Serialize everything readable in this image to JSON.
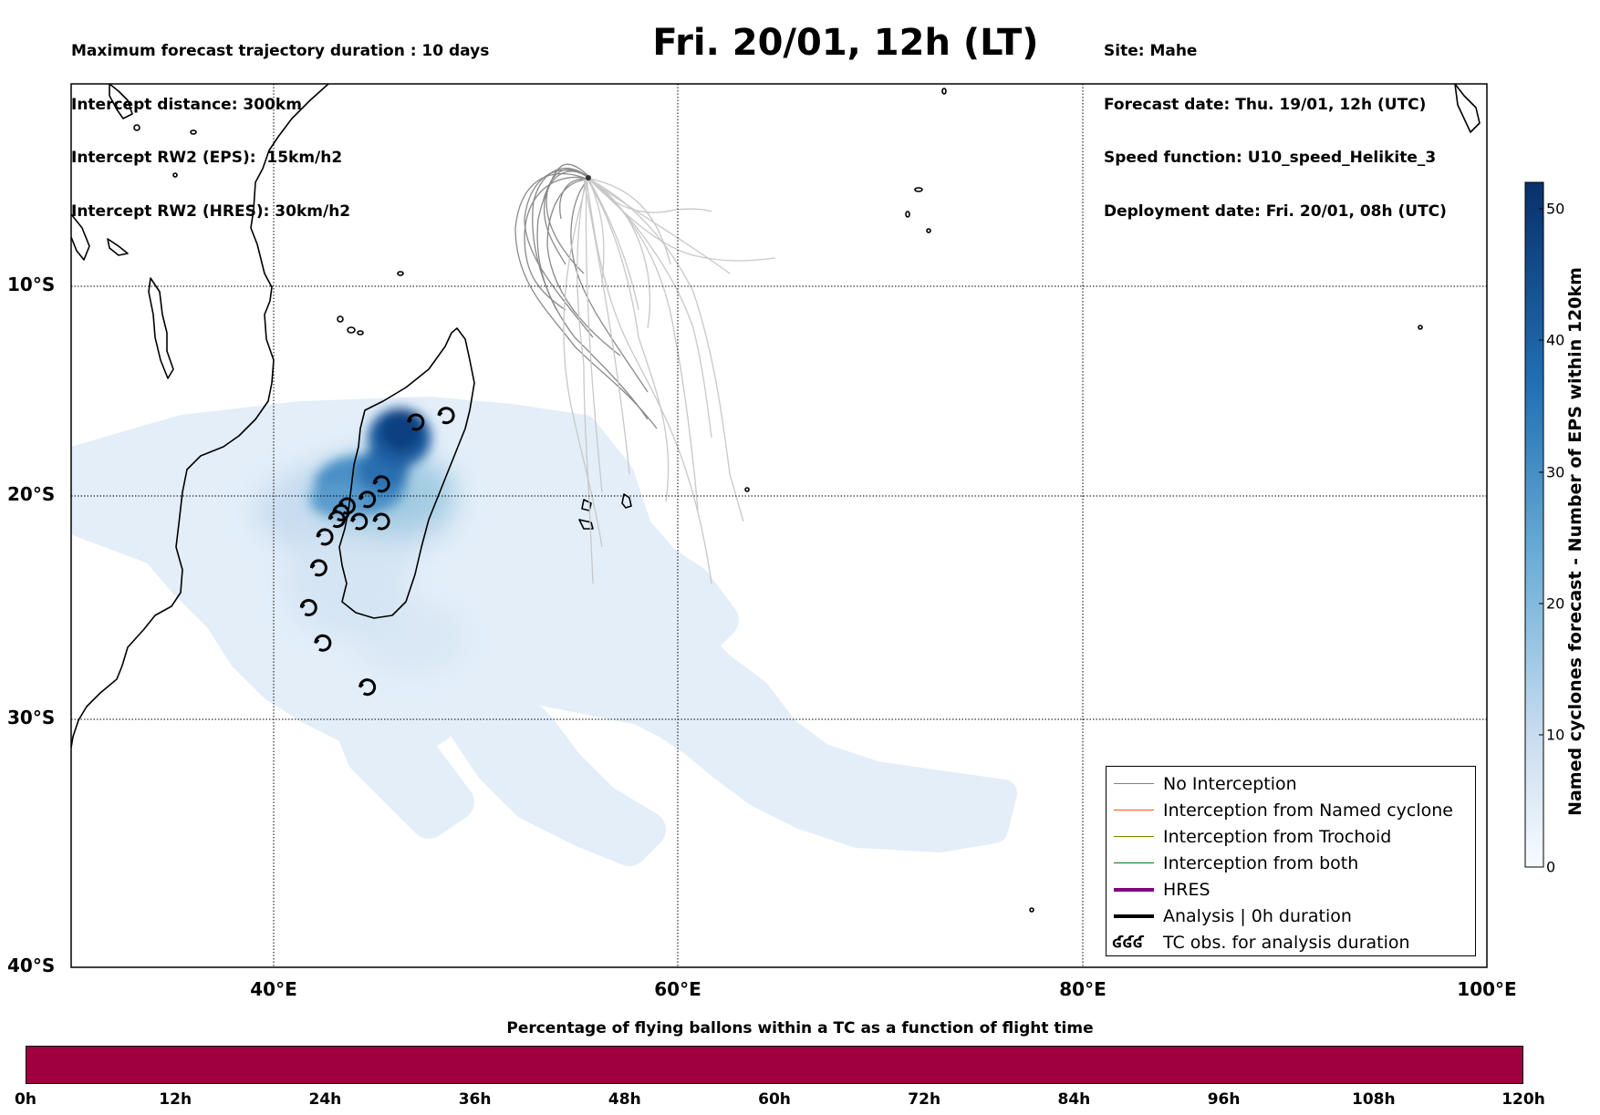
{
  "header": {
    "left_lines": [
      "Maximum forecast trajectory duration : 10 days",
      "Intercept distance: 300km",
      "Intercept RW2 (EPS):  15km/h2",
      "Intercept RW2 (HRES): 30km/h2"
    ],
    "right_lines": [
      "Site: Mahe",
      "Forecast date: Thu. 19/01, 12h (UTC)",
      "Speed function: U10_speed_Helikite_3",
      "Deployment date: Fri. 20/01, 08h (UTC)"
    ],
    "title": "Fri. 20/01, 12h (LT)"
  },
  "map": {
    "lon_range": [
      30,
      100
    ],
    "lat_range": [
      -40,
      0
    ],
    "lat_labels": [
      "10°S",
      "20°S",
      "30°S",
      "40°S"
    ],
    "lon_labels": [
      "40°E",
      "60°E",
      "80°E",
      "100°E"
    ],
    "colorbar": {
      "label": "Named cyclones forecast - Number of EPS within 120km",
      "ticks": [
        "0",
        "10",
        "20",
        "30",
        "40",
        "50"
      ],
      "range": [
        0,
        52
      ],
      "colors": [
        "#eaf2fb",
        "#c6dbef",
        "#6baed6",
        "#2171b5",
        "#08306b"
      ]
    },
    "tc_obs": [
      {
        "lon": 46.5,
        "lat": -15.6
      },
      {
        "lon": 48.0,
        "lat": -15.3
      },
      {
        "lon": 44.8,
        "lat": -18.4
      },
      {
        "lon": 44.1,
        "lat": -19.1
      },
      {
        "lon": 43.1,
        "lat": -19.4
      },
      {
        "lon": 42.8,
        "lat": -19.7
      },
      {
        "lon": 42.6,
        "lat": -20.0
      },
      {
        "lon": 43.7,
        "lat": -20.1
      },
      {
        "lon": 44.8,
        "lat": -20.1
      },
      {
        "lon": 42.0,
        "lat": -20.8
      },
      {
        "lon": 41.7,
        "lat": -22.2
      },
      {
        "lon": 41.2,
        "lat": -24.0
      },
      {
        "lon": 41.9,
        "lat": -25.6
      },
      {
        "lon": 44.1,
        "lat": -27.6
      }
    ]
  },
  "legend": {
    "items": [
      {
        "label": "No Interception",
        "color": "#808080",
        "width": 1.2
      },
      {
        "label": "Interception from Named cyclone",
        "color": "#ff5500",
        "width": 1.2
      },
      {
        "label": "Interception from Trochoid",
        "color": "#808000",
        "width": 1.2
      },
      {
        "label": "Interception from both",
        "color": "#008000",
        "width": 1.2
      },
      {
        "label": "HRES",
        "color": "#800080",
        "width": 4
      },
      {
        "label": "Analysis | 0h duration",
        "color": "#000000",
        "width": 4
      }
    ],
    "obs_label": "TC obs. for analysis duration",
    "obs_symbol": "ʛʛʛ"
  },
  "flight_bar": {
    "title": "Percentage of flying ballons within a TC as a function of flight time",
    "color": "#a00040",
    "ticks": [
      "0h",
      "12h",
      "24h",
      "36h",
      "48h",
      "60h",
      "72h",
      "84h",
      "96h",
      "108h",
      "120h"
    ]
  }
}
